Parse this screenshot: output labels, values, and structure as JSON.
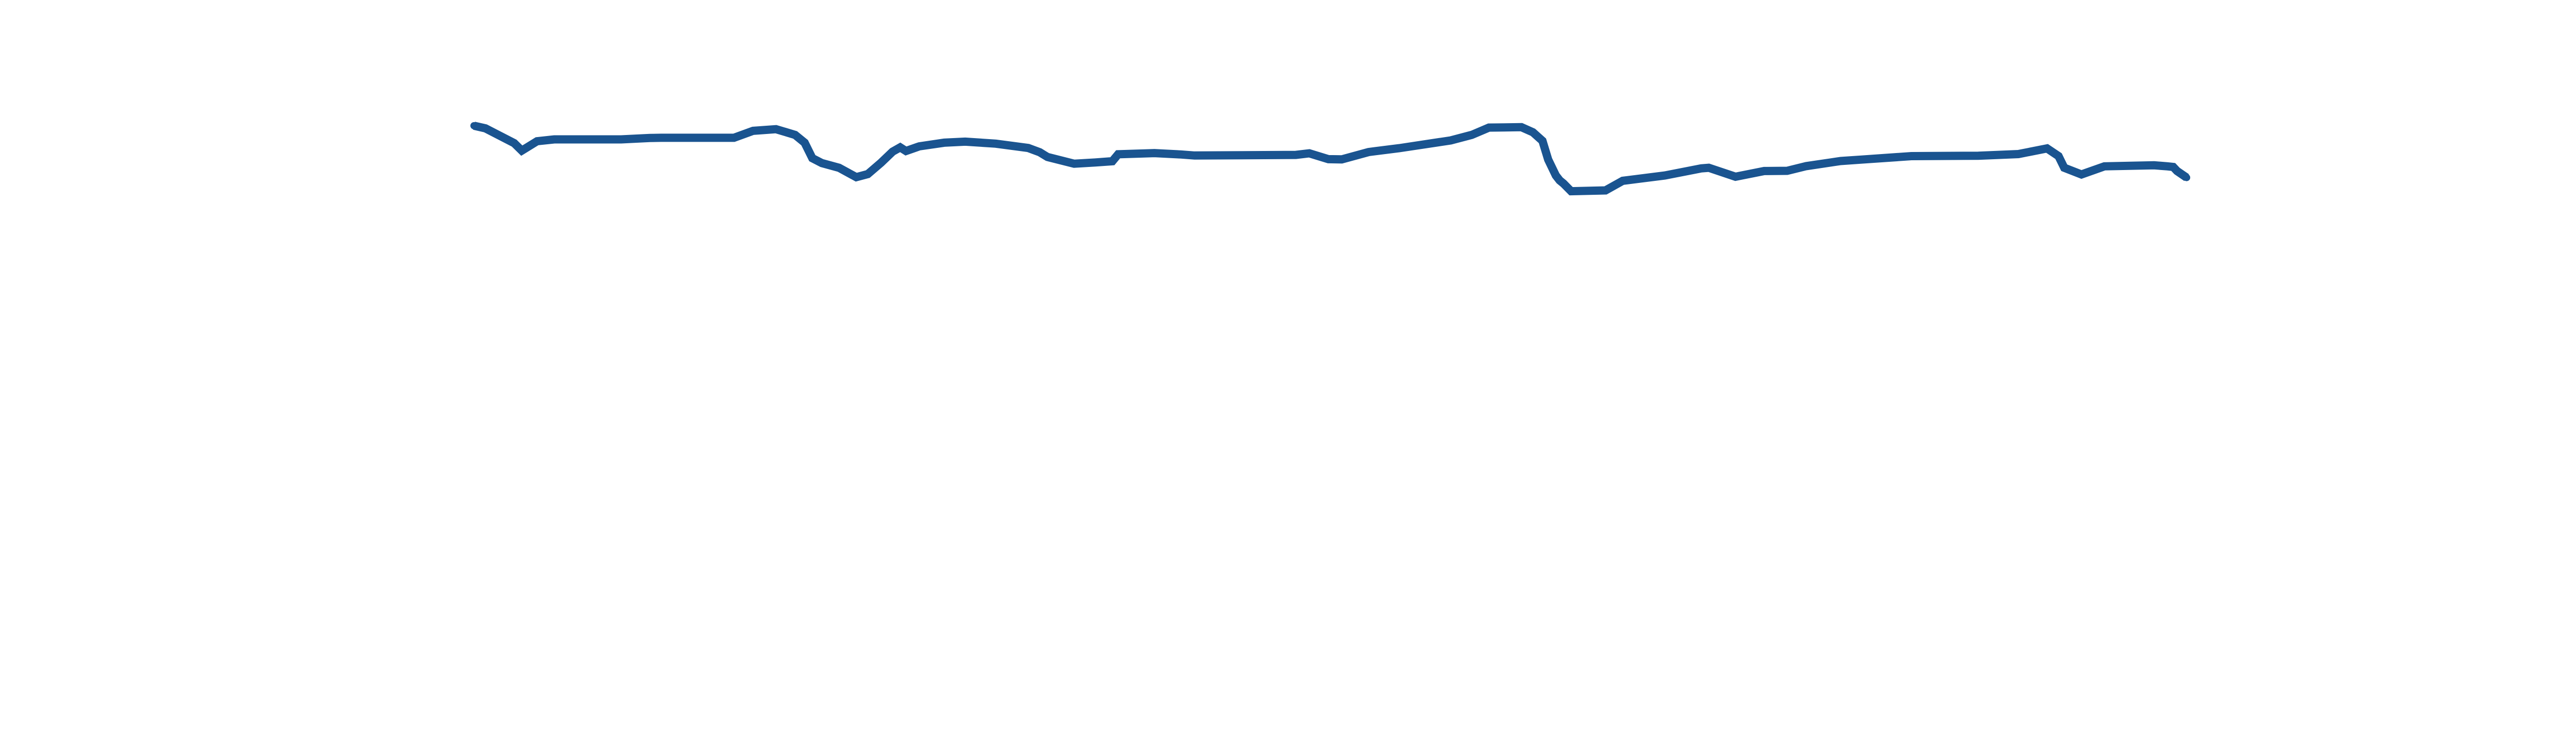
{
  "chart_data": {
    "type": "line",
    "title": "",
    "xlabel": "",
    "ylabel": "",
    "axes_visible": false,
    "grid": false,
    "legend": "none",
    "xlim": [
      0,
      100
    ],
    "ylim": [
      0,
      100
    ],
    "series": [
      {
        "color": "#1a5490",
        "x": [
          0.0,
          0.6,
          2.1,
          2.5,
          3.3,
          4.2,
          7.7,
          9.2,
          9.8,
          13.6,
          14.6,
          15.8,
          16.8,
          17.3,
          17.7,
          18.2,
          19.1,
          20.0,
          20.6,
          21.3,
          21.9,
          22.3,
          22.6,
          23.3,
          24.6,
          25.7,
          27.3,
          29.0,
          29.6,
          30.0,
          31.4,
          32.5,
          33.4,
          33.7,
          35.6,
          37.0,
          37.7,
          43.0,
          43.7,
          44.7,
          45.4,
          46.8,
          48.4,
          51.1,
          52.2,
          53.1,
          54.8,
          55.4,
          55.9,
          56.2,
          56.6,
          56.8,
          57.0,
          57.4,
          59.2,
          60.1,
          62.3,
          64.2,
          64.6,
          66.0,
          67.5,
          68.7,
          69.7,
          71.5,
          72.6,
          75.2,
          78.7,
          80.8,
          82.3,
          82.9,
          83.2,
          84.1,
          85.3,
          87.9,
          88.6,
          88.9,
          89.1,
          89.6
        ],
        "y": [
          100.0,
          98.7,
          91.5,
          87.8,
          92.4,
          93.3,
          93.3,
          94.0,
          94.1,
          94.1,
          97.5,
          98.3,
          95.5,
          91.7,
          84.1,
          81.7,
          79.4,
          74.8,
          76.3,
          81.9,
          87.3,
          89.4,
          87.6,
          89.9,
          91.7,
          92.2,
          91.2,
          89.1,
          87.0,
          84.7,
          81.4,
          82.0,
          82.6,
          86.0,
          86.6,
          85.9,
          85.4,
          85.7,
          86.5,
          83.6,
          83.5,
          87.1,
          89.0,
          92.8,
          95.5,
          99.1,
          99.3,
          96.8,
          92.6,
          83.4,
          75.6,
          73.2,
          71.7,
          67.9,
          68.3,
          73.0,
          75.6,
          79.1,
          79.4,
          75.0,
          77.8,
          77.9,
          80.2,
          82.7,
          83.4,
          85.1,
          85.3,
          86.1,
          88.9,
          85.1,
          79.4,
          76.1,
          80.1,
          80.6,
          80.1,
          79.8,
          77.8,
          74.6
        ]
      }
    ]
  }
}
